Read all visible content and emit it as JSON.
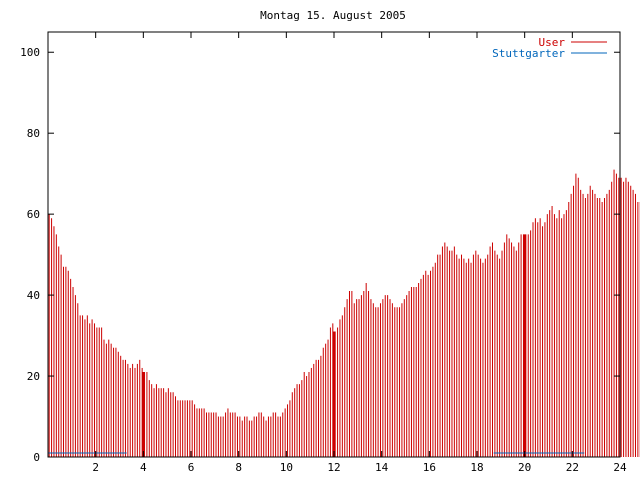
{
  "chart_data": {
    "type": "bar",
    "title": "Montag 15. August 2005",
    "xlabel": "",
    "ylabel": "",
    "xlim": [
      0,
      24
    ],
    "ylim": [
      0,
      105
    ],
    "x_ticks": [
      2,
      4,
      6,
      8,
      10,
      12,
      14,
      16,
      18,
      20,
      22,
      24
    ],
    "y_ticks": [
      0,
      20,
      40,
      60,
      80,
      100
    ],
    "grid": false,
    "legend_position": "top-right",
    "bin_hours": 0.1,
    "series": [
      {
        "name": "User",
        "color": "#cc0000",
        "values": [
          60,
          59,
          57,
          55,
          52,
          50,
          47,
          47,
          46,
          44,
          42,
          40,
          38,
          35,
          35,
          34,
          35,
          33,
          34,
          33,
          32,
          32,
          32,
          29,
          28,
          29,
          28,
          27,
          27,
          26,
          25,
          24,
          24,
          23,
          22,
          23,
          22,
          23,
          24,
          22,
          21,
          21,
          19,
          18,
          17,
          18,
          17,
          17,
          17,
          16,
          17,
          16,
          16,
          15,
          14,
          14,
          14,
          14,
          14,
          14,
          14,
          13,
          12,
          12,
          12,
          12,
          11,
          11,
          11,
          11,
          11,
          10,
          10,
          10,
          11,
          12,
          11,
          11,
          11,
          10,
          10,
          9,
          10,
          10,
          9,
          9,
          10,
          10,
          11,
          11,
          10,
          9,
          10,
          10,
          11,
          11,
          10,
          10,
          11,
          12,
          13,
          14,
          16,
          17,
          18,
          18,
          19,
          21,
          20,
          21,
          22,
          23,
          24,
          24,
          25,
          27,
          28,
          29,
          32,
          33,
          31,
          32,
          34,
          35,
          37,
          39,
          41,
          41,
          38,
          39,
          39,
          40,
          41,
          43,
          41,
          39,
          38,
          37,
          37,
          38,
          39,
          40,
          40,
          39,
          38,
          37,
          37,
          37,
          38,
          39,
          40,
          41,
          42,
          42,
          42,
          43,
          44,
          45,
          46,
          45,
          46,
          47,
          48,
          50,
          50,
          52,
          53,
          52,
          51,
          51,
          52,
          50,
          49,
          50,
          49,
          48,
          49,
          48,
          50,
          51,
          50,
          49,
          48,
          49,
          50,
          52,
          53,
          51,
          50,
          49,
          51,
          53,
          55,
          54,
          53,
          52,
          51,
          53,
          55,
          55,
          55,
          55,
          56,
          58,
          59,
          58,
          59,
          57,
          58,
          60,
          61,
          62,
          60,
          59,
          61,
          59,
          60,
          61,
          63,
          65,
          67,
          70,
          69,
          66,
          65,
          64,
          65,
          67,
          66,
          65,
          64,
          64,
          63,
          64,
          65,
          66,
          68,
          71,
          70,
          69,
          69,
          68,
          69,
          68,
          67,
          66,
          65,
          63,
          63,
          62,
          64,
          64,
          63,
          64
        ]
      },
      {
        "name": "Stuttgarter",
        "color": "#0066bb",
        "segments": [
          {
            "from": 0.0,
            "to": 3.3,
            "value": 1
          },
          {
            "from": 18.7,
            "to": 22.5,
            "value": 1
          }
        ]
      }
    ],
    "highlight_hours": [
      4,
      12,
      20
    ]
  }
}
